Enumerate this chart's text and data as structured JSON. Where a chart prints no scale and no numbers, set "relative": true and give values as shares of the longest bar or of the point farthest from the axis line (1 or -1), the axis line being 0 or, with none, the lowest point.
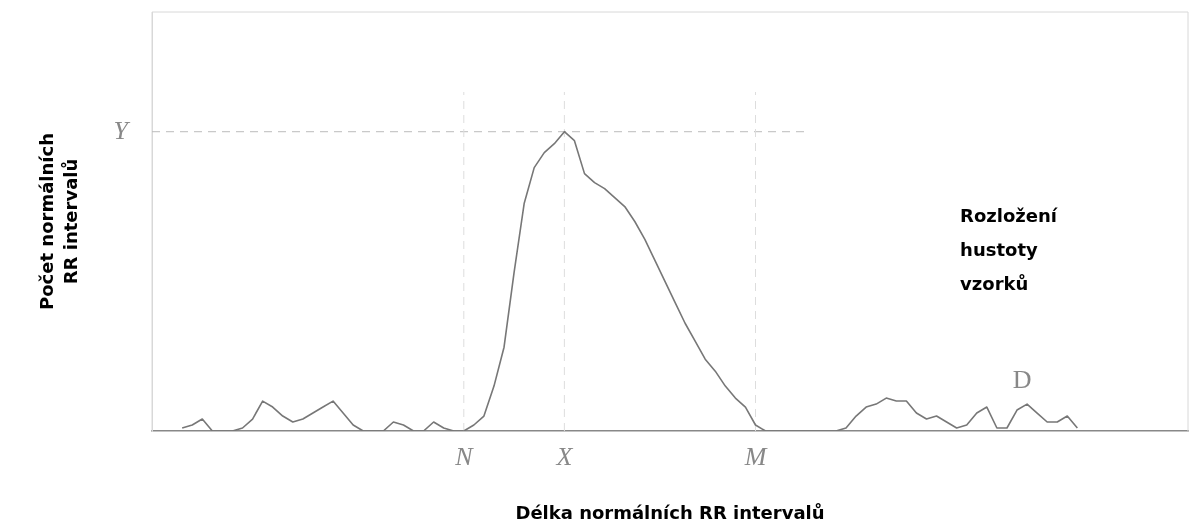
{
  "chart_data": {
    "type": "line",
    "relative": true,
    "xlabel": "Délka normálních RR intervalů",
    "ylabel": "Počet normálních RR intervalů",
    "color": "#777777",
    "marker": "none",
    "line_style": "solid",
    "grid": false,
    "legend": false,
    "categories": [
      null,
      null,
      null,
      null,
      null,
      null,
      null,
      null,
      null,
      null,
      null,
      null,
      null,
      null,
      null,
      null,
      null,
      null,
      null,
      null,
      null,
      null,
      null,
      null,
      null,
      null,
      null,
      null,
      null,
      null,
      null,
      "N",
      null,
      null,
      null,
      null,
      null,
      null,
      null,
      null,
      null,
      "X",
      null,
      null,
      null,
      null,
      null,
      null,
      null,
      null,
      null,
      null,
      null,
      null,
      null,
      null,
      null,
      null,
      null,
      null,
      "M",
      null,
      null,
      null,
      null,
      null,
      null,
      null,
      null,
      null,
      null,
      null,
      null,
      null,
      null,
      null,
      null,
      null,
      null,
      null,
      null,
      null,
      null,
      null,
      null,
      null,
      null,
      null,
      null,
      null,
      null,
      null,
      null,
      null,
      null,
      null,
      null,
      null,
      null,
      null,
      null,
      null,
      null,
      null
    ],
    "values": [
      null,
      null,
      null,
      0.01,
      0.02,
      0.04,
      0,
      0,
      0,
      0.01,
      0.04,
      0.1,
      0.08,
      0.05,
      0.03,
      0.04,
      0.06,
      0.08,
      0.1,
      0.06,
      0.02,
      0,
      0,
      0,
      0.03,
      0.02,
      0,
      0,
      0.03,
      0.01,
      0,
      0,
      0.02,
      0.05,
      0.15,
      0.28,
      0.53,
      0.76,
      0.88,
      0.93,
      0.96,
      1,
      0.97,
      0.86,
      0.83,
      0.81,
      0.78,
      0.75,
      0.7,
      0.64,
      0.57,
      0.5,
      0.43,
      0.36,
      0.3,
      0.24,
      0.2,
      0.15,
      0.11,
      0.08,
      0.02,
      0,
      0,
      0,
      0,
      0,
      0,
      0,
      0,
      0.01,
      0.05,
      0.08,
      0.09,
      0.11,
      0.1,
      0.1,
      0.06,
      0.04,
      0.05,
      0.03,
      0.01,
      0.02,
      0.06,
      0.08,
      0.01,
      0.01,
      0.07,
      0.09,
      0.06,
      0.03,
      0.03,
      0.05,
      0.01,
      null,
      null,
      null,
      null,
      null,
      null,
      null,
      null,
      null,
      null,
      null
    ],
    "ref_lines": [
      {
        "axis": "y",
        "value": 1,
        "label": "Y",
        "line_style": "dashed",
        "color": "#bbbbbb"
      },
      {
        "axis": "x",
        "value": "N",
        "line_style": "dashed",
        "color": "#dddddd"
      },
      {
        "axis": "x",
        "value": "X",
        "line_style": "dashed",
        "color": "#dddddd"
      },
      {
        "axis": "x",
        "value": "M",
        "line_style": "dashed",
        "color": "#dddddd"
      }
    ],
    "annotations": [
      "Rozložení hustoty vzorků",
      "D"
    ]
  }
}
